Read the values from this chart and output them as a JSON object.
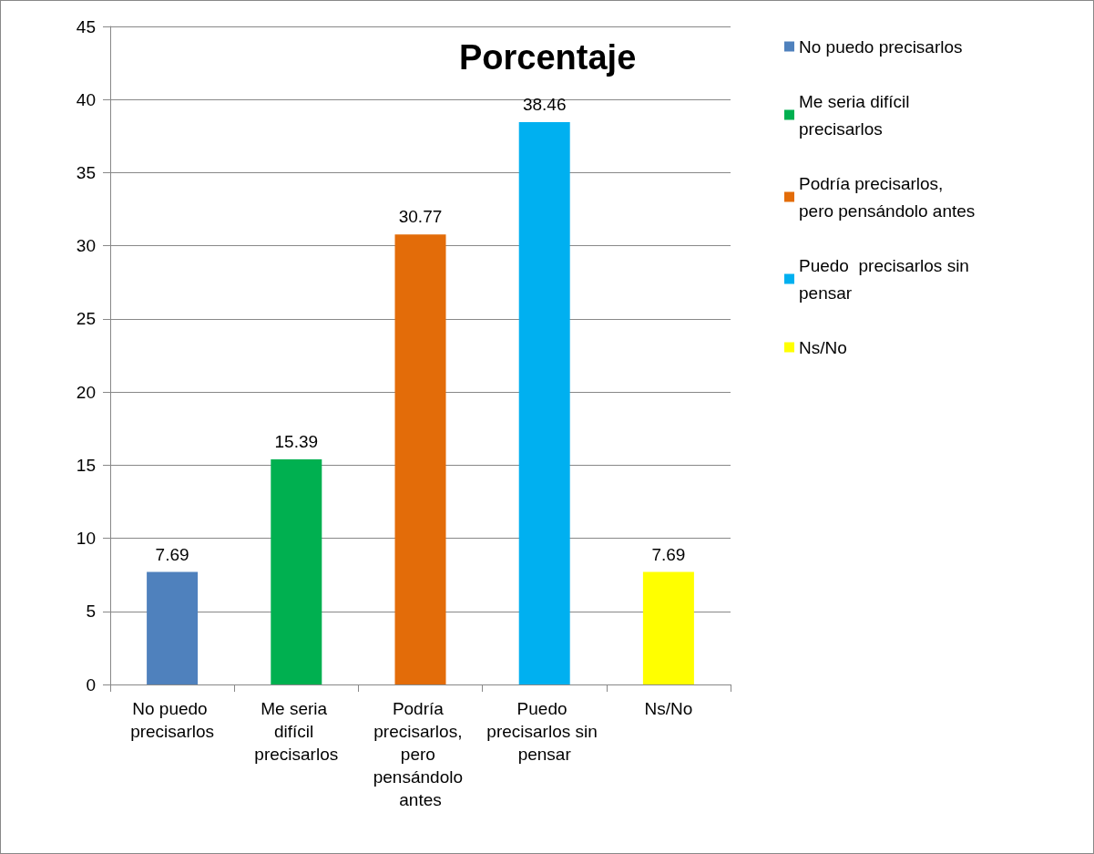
{
  "chart_data": {
    "type": "bar",
    "title": "Porcentaje",
    "categories": [
      "No puedo precisarlos",
      "Me seria difícil precisarlos",
      "Podría precisarlos, pero pensándolo antes",
      "Puedo precisarlos sin pensar",
      "Ns/No"
    ],
    "series": [
      {
        "name": "No puedo precisarlos",
        "color": "#4f81bd",
        "values": [
          7.69,
          null,
          null,
          null,
          null
        ]
      },
      {
        "name": "Me seria difícil precisarlos",
        "color": "#00b050",
        "values": [
          null,
          15.39,
          null,
          null,
          null
        ]
      },
      {
        "name": "Podría precisarlos, pero pensándolo antes",
        "color": "#e36c09",
        "values": [
          null,
          null,
          30.77,
          null,
          null
        ]
      },
      {
        "name": "Puedo  precisarlos sin pensar",
        "color": "#00b0f0",
        "values": [
          null,
          null,
          null,
          38.46,
          null
        ]
      },
      {
        "name": "Ns/No",
        "color": "#ffff00",
        "values": [
          null,
          null,
          null,
          null,
          7.69
        ]
      }
    ],
    "ylim": [
      0,
      45
    ],
    "yticks": [
      0,
      5,
      10,
      15,
      20,
      25,
      30,
      35,
      40,
      45
    ],
    "grid": "y",
    "legend": "right",
    "data_labels": true
  }
}
